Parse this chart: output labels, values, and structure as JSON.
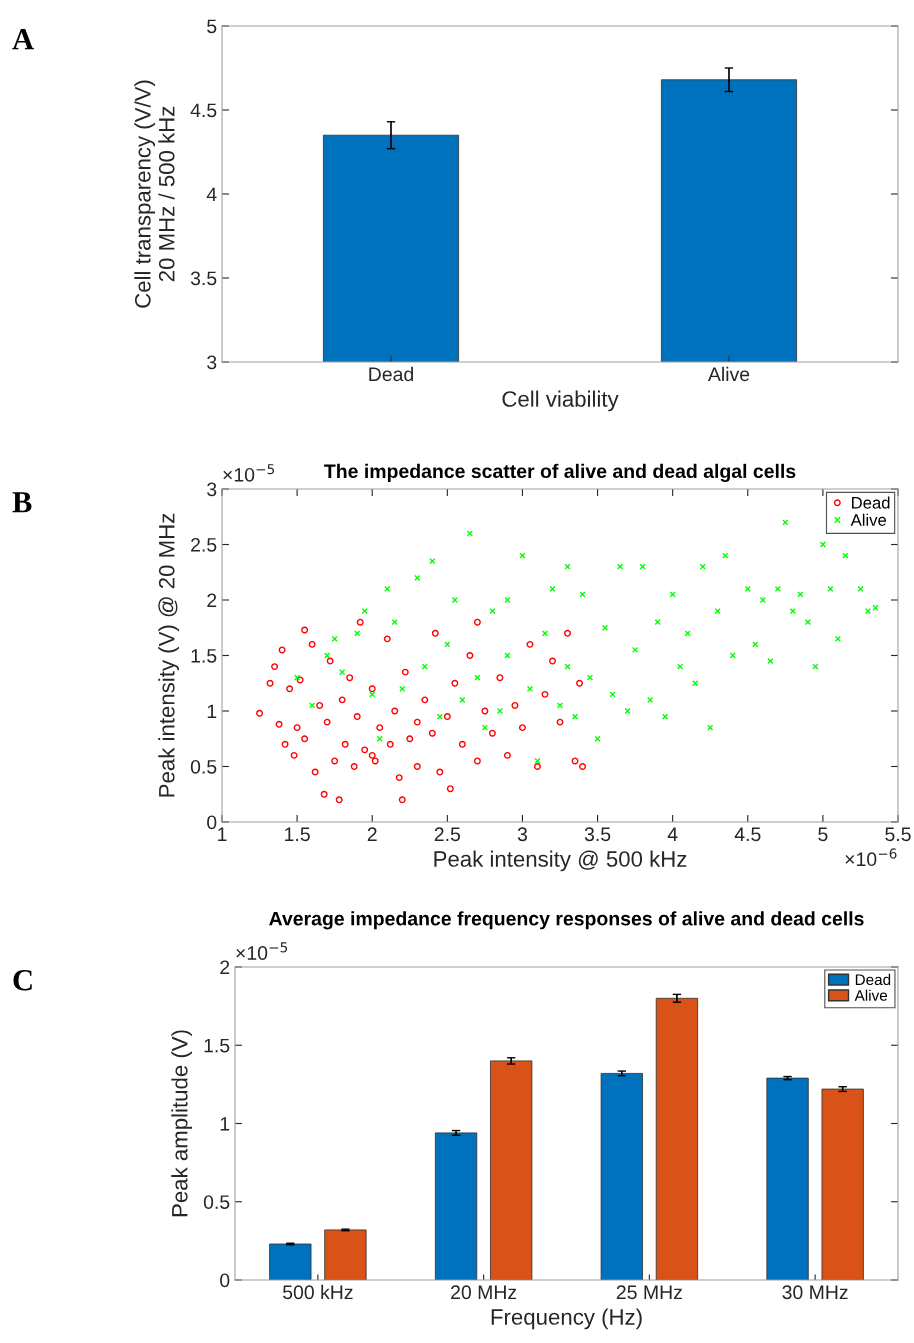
{
  "chart_data": [
    {
      "type": "bar",
      "ylabel": "Cell transparency (V/V)\n20 MHz / 500 kHz",
      "xlabel": "Cell viability",
      "annotations": [
        "A"
      ],
      "categories": [
        "Dead",
        "Alive"
      ],
      "values": [
        4.35,
        4.68
      ],
      "errors": [
        0.08,
        0.07
      ],
      "color": "#0072bd",
      "ylim": [
        3,
        5
      ],
      "yticks": [
        3,
        3.5,
        4,
        4.5,
        5
      ],
      "grid": false
    },
    {
      "type": "scatter",
      "title": "The impedance scatter of alive and dead algal cells",
      "xlabel": "Peak intensity @ 500 kHz",
      "ylabel": "Peak intensity (V) @ 20 MHz",
      "annotations": [
        "B",
        "×10$^{−5}$",
        "×10$^{−6}$"
      ],
      "legend": "top right",
      "grid": false,
      "xlim": [
        1,
        5.5
      ],
      "xticks": [
        1,
        1.5,
        2,
        2.5,
        3,
        3.5,
        4,
        4.5,
        5,
        5.5
      ],
      "ylim": [
        0,
        3
      ],
      "yticks": [
        0,
        0.5,
        1,
        1.5,
        2,
        2.5,
        3
      ],
      "series": [
        {
          "name": "Dead",
          "color": "#ff0000",
          "marker": "circle",
          "x": [
            1.25,
            1.32,
            1.35,
            1.38,
            1.4,
            1.42,
            1.45,
            1.48,
            1.5,
            1.52,
            1.55,
            1.6,
            1.62,
            1.65,
            1.68,
            1.7,
            1.72,
            1.75,
            1.78,
            1.8,
            1.82,
            1.85,
            1.88,
            1.9,
            1.92,
            1.95,
            2.0,
            2.02,
            2.05,
            2.1,
            2.12,
            2.15,
            2.18,
            2.2,
            2.22,
            2.25,
            2.3,
            2.35,
            2.4,
            2.42,
            2.45,
            2.5,
            2.52,
            2.55,
            2.6,
            2.65,
            2.7,
            2.75,
            2.8,
            2.85,
            2.9,
            2.95,
            3.0,
            3.05,
            3.1,
            3.15,
            3.2,
            3.25,
            3.3,
            3.35,
            3.38,
            3.4,
            2.7,
            1.55,
            2.0,
            2.3
          ],
          "values": [
            0.98,
            1.25,
            1.4,
            0.88,
            1.55,
            0.7,
            1.2,
            0.6,
            0.85,
            1.28,
            0.75,
            1.6,
            0.45,
            1.05,
            0.25,
            0.9,
            1.45,
            0.55,
            0.2,
            1.1,
            0.7,
            1.3,
            0.5,
            0.95,
            1.8,
            0.65,
            1.2,
            0.55,
            0.85,
            1.65,
            0.7,
            1.0,
            0.4,
            0.2,
            1.35,
            0.75,
            0.5,
            1.1,
            0.8,
            1.7,
            0.45,
            0.95,
            0.3,
            1.25,
            0.7,
            1.5,
            0.55,
            1.0,
            0.8,
            1.3,
            0.6,
            1.05,
            0.85,
            1.6,
            0.5,
            1.15,
            1.45,
            0.9,
            1.7,
            0.55,
            1.25,
            0.5,
            1.8,
            1.73,
            0.6,
            0.9
          ]
        },
        {
          "name": "Alive",
          "color": "#00ff00",
          "marker": "cross",
          "x": [
            1.5,
            1.6,
            1.7,
            1.75,
            1.8,
            1.9,
            1.95,
            2.0,
            2.05,
            2.1,
            2.15,
            2.2,
            2.3,
            2.35,
            2.4,
            2.45,
            2.5,
            2.55,
            2.6,
            2.65,
            2.7,
            2.75,
            2.8,
            2.85,
            2.9,
            3.0,
            3.05,
            3.1,
            3.15,
            3.2,
            3.25,
            3.3,
            3.35,
            3.4,
            3.45,
            3.5,
            3.55,
            3.6,
            3.65,
            3.7,
            3.75,
            3.8,
            3.85,
            3.9,
            3.95,
            4.0,
            4.05,
            4.1,
            4.15,
            4.2,
            4.25,
            4.3,
            4.35,
            4.4,
            4.5,
            4.55,
            4.6,
            4.65,
            4.7,
            4.75,
            4.8,
            4.85,
            4.9,
            4.95,
            5.0,
            5.05,
            5.1,
            5.15,
            5.25,
            5.3,
            5.35,
            3.3,
            2.9
          ],
          "values": [
            1.3,
            1.05,
            1.5,
            1.65,
            1.35,
            1.7,
            1.9,
            1.15,
            0.75,
            2.1,
            1.8,
            1.2,
            2.2,
            1.4,
            2.35,
            0.95,
            1.6,
            2.0,
            1.1,
            2.6,
            1.3,
            0.85,
            1.9,
            1.0,
            1.5,
            2.4,
            1.2,
            0.55,
            1.7,
            2.1,
            1.05,
            1.4,
            0.95,
            2.05,
            1.3,
            0.75,
            1.75,
            1.15,
            2.3,
            1.0,
            1.55,
            2.3,
            1.1,
            1.8,
            0.95,
            2.05,
            1.4,
            1.7,
            1.25,
            2.3,
            0.85,
            1.9,
            2.4,
            1.5,
            2.1,
            1.6,
            2.0,
            1.45,
            2.1,
            2.7,
            1.9,
            2.05,
            1.8,
            1.4,
            2.5,
            2.1,
            1.65,
            2.4,
            2.1,
            1.9,
            1.93,
            2.3,
            2.0
          ]
        }
      ]
    },
    {
      "type": "bar",
      "title": "Average impedance frequency responses of alive and dead cells",
      "xlabel": "Frequency (Hz)",
      "ylabel": "Peak amplitude (V)",
      "annotations": [
        "C",
        "×10$^{−5}$"
      ],
      "legend": "top right",
      "grid": false,
      "categories": [
        "500 kHz",
        "20 MHz",
        "25 MHz",
        "30 MHz"
      ],
      "ylim": [
        0,
        2
      ],
      "yticks": [
        0,
        0.5,
        1,
        1.5,
        2
      ],
      "series": [
        {
          "name": "Dead",
          "color": "#0072bd",
          "values": [
            0.23,
            0.94,
            1.32,
            1.29
          ],
          "errors": [
            0.005,
            0.015,
            0.015,
            0.01
          ]
        },
        {
          "name": "Alive",
          "color": "#d95319",
          "values": [
            0.32,
            1.4,
            1.8,
            1.22
          ],
          "errors": [
            0.005,
            0.02,
            0.025,
            0.015
          ]
        }
      ]
    }
  ]
}
